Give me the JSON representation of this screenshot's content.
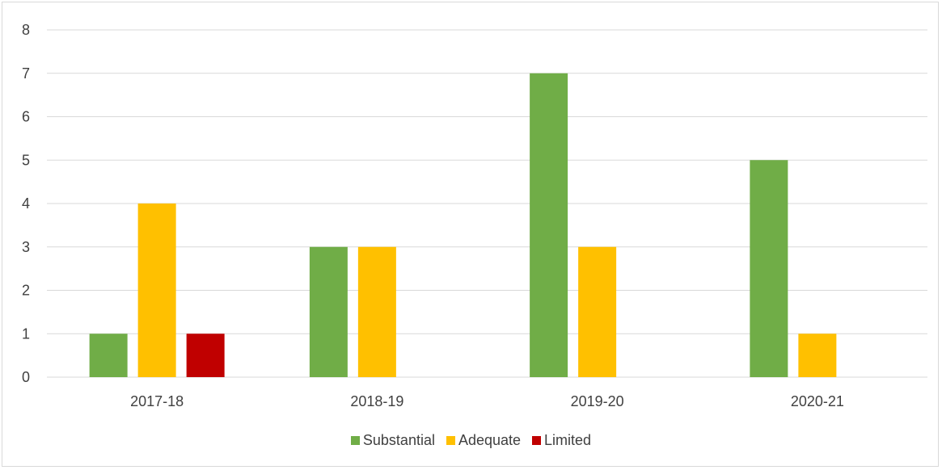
{
  "chart_data": {
    "type": "bar",
    "categories": [
      "2017-18",
      "2018-19",
      "2019-20",
      "2020-21"
    ],
    "series": [
      {
        "name": "Substantial",
        "color": "#70ad47",
        "values": [
          1,
          3,
          7,
          5
        ]
      },
      {
        "name": "Adequate",
        "color": "#ffc000",
        "values": [
          4,
          3,
          3,
          1
        ]
      },
      {
        "name": "Limited",
        "color": "#c00000",
        "values": [
          1,
          0,
          0,
          0
        ]
      }
    ],
    "ylim": [
      0,
      8
    ],
    "yticks": [
      0,
      1,
      2,
      3,
      4,
      5,
      6,
      7,
      8
    ],
    "grid": true,
    "legend_position": "bottom",
    "title": "",
    "xlabel": "",
    "ylabel": ""
  }
}
